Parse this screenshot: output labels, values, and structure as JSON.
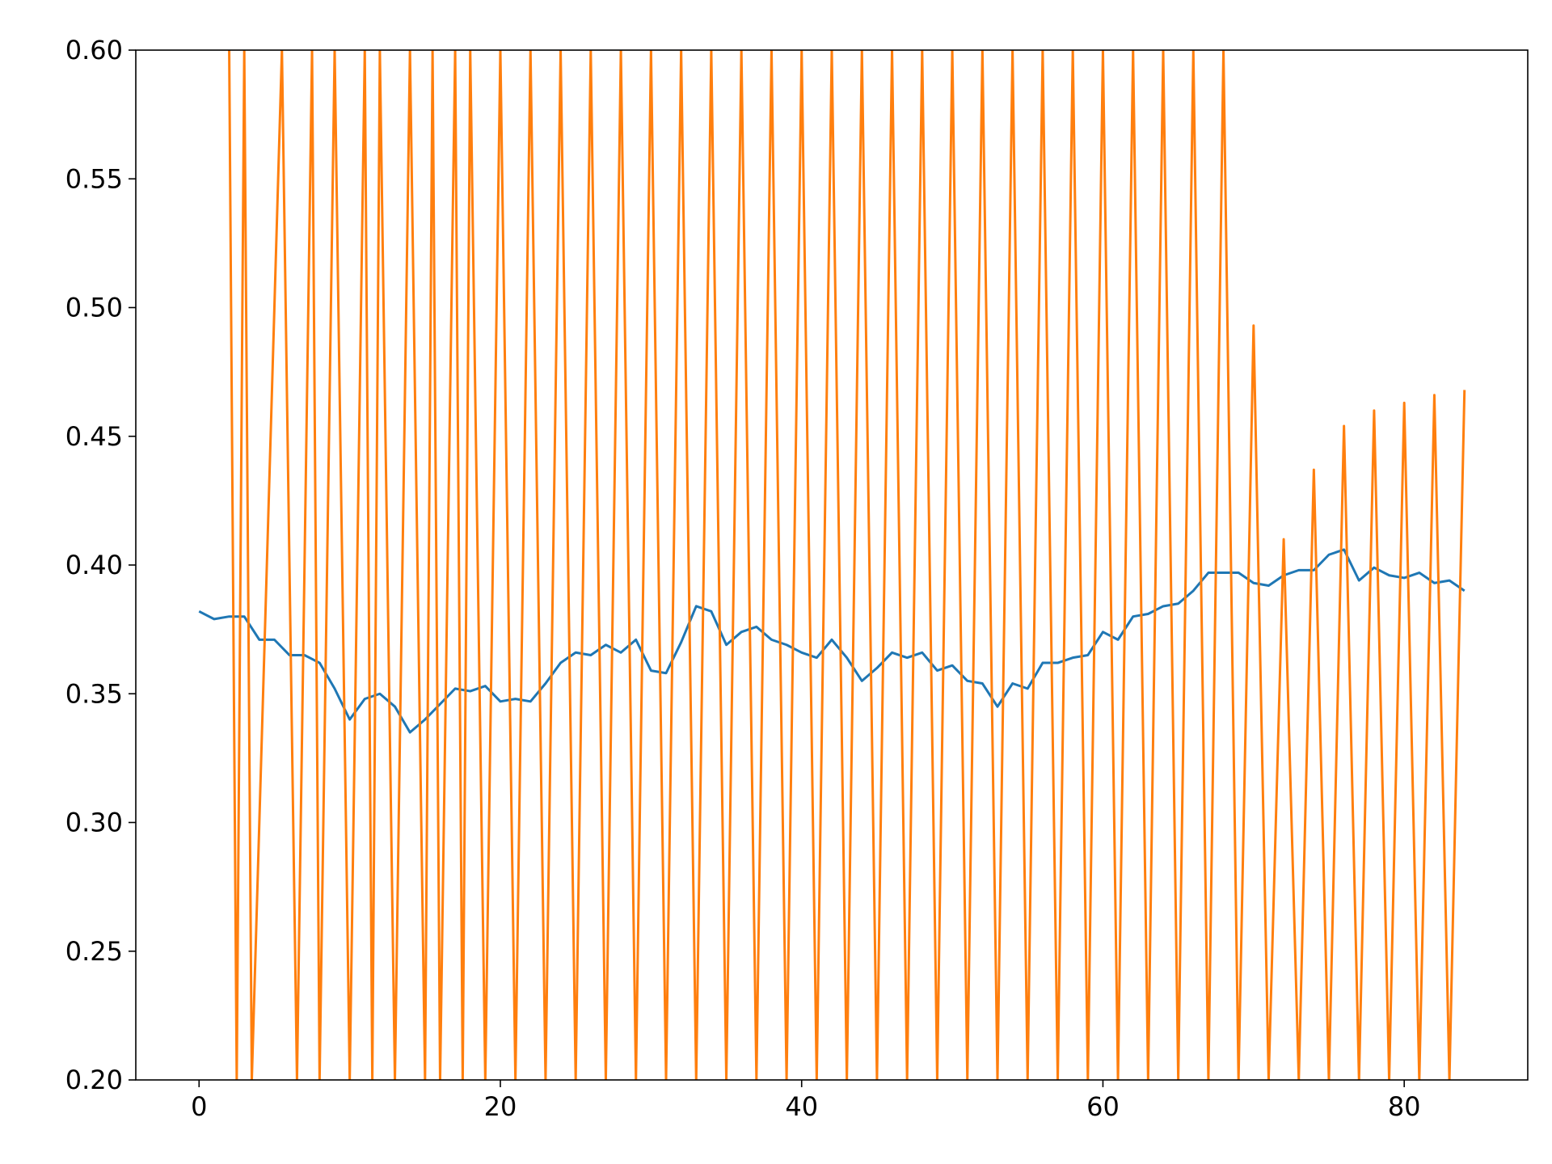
{
  "chart_data": {
    "type": "line",
    "title": "",
    "xlabel": "",
    "ylabel": "",
    "xlim": [
      -4.2,
      88.2
    ],
    "ylim": [
      0.2,
      0.6
    ],
    "grid": false,
    "legend": "none",
    "x_ticks": [
      0,
      20,
      40,
      60,
      80
    ],
    "x_tick_labels": [
      "0",
      "20",
      "40",
      "60",
      "80"
    ],
    "y_ticks": [
      0.2,
      0.25,
      0.3,
      0.35,
      0.4,
      0.45,
      0.5,
      0.55,
      0.6
    ],
    "y_tick_labels": [
      "0.20",
      "0.25",
      "0.30",
      "0.35",
      "0.40",
      "0.45",
      "0.50",
      "0.55",
      "0.60"
    ],
    "series": [
      {
        "color": "#1f77b4",
        "x": [
          0,
          1,
          2,
          3,
          4,
          5,
          6,
          7,
          8,
          9,
          10,
          11,
          12,
          13,
          14,
          15,
          16,
          17,
          18,
          19,
          20,
          21,
          22,
          23,
          24,
          25,
          26,
          27,
          28,
          29,
          30,
          31,
          32,
          33,
          34,
          35,
          36,
          37,
          38,
          39,
          40,
          41,
          42,
          43,
          44,
          45,
          46,
          47,
          48,
          49,
          50,
          51,
          52,
          53,
          54,
          55,
          56,
          57,
          58,
          59,
          60,
          61,
          62,
          63,
          64,
          65,
          66,
          67,
          68,
          69,
          70,
          71,
          72,
          73,
          74,
          75,
          76,
          77,
          78,
          79,
          80,
          81,
          82,
          83,
          84
        ],
        "y": [
          0.382,
          0.379,
          0.38,
          0.38,
          0.371,
          0.371,
          0.365,
          0.365,
          0.362,
          0.352,
          0.34,
          0.348,
          0.35,
          0.345,
          0.335,
          0.34,
          0.346,
          0.352,
          0.351,
          0.353,
          0.347,
          0.348,
          0.347,
          0.354,
          0.362,
          0.366,
          0.365,
          0.369,
          0.366,
          0.371,
          0.359,
          0.358,
          0.37,
          0.384,
          0.382,
          0.369,
          0.374,
          0.376,
          0.371,
          0.369,
          0.366,
          0.364,
          0.371,
          0.364,
          0.355,
          0.36,
          0.366,
          0.364,
          0.366,
          0.359,
          0.361,
          0.355,
          0.354,
          0.345,
          0.354,
          0.352,
          0.362,
          0.362,
          0.364,
          0.365,
          0.374,
          0.371,
          0.38,
          0.381,
          0.384,
          0.385,
          0.39,
          0.397,
          0.397,
          0.397,
          0.393,
          0.392,
          0.396,
          0.398,
          0.398,
          0.404,
          0.406,
          0.394,
          0.399,
          0.396,
          0.395,
          0.397,
          0.393,
          0.394,
          0.39
        ]
      },
      {
        "color": "#ff7f0e",
        "x": [
          2,
          2.5,
          3,
          3.5,
          5.5,
          6.5,
          7.5,
          8,
          9,
          10,
          11,
          11.5,
          12,
          13,
          14,
          15,
          15.5,
          16,
          17,
          17.5,
          18,
          19,
          20,
          21,
          22,
          23,
          24,
          25,
          26,
          27,
          28,
          29,
          30,
          31,
          32,
          33,
          34,
          35,
          36,
          37,
          38,
          39,
          40,
          41,
          42,
          43,
          44,
          45,
          46,
          47,
          48,
          49,
          50,
          51,
          52,
          53,
          54,
          55,
          56,
          57,
          58,
          59,
          60,
          61,
          62,
          63,
          64,
          65,
          66,
          67,
          68,
          69,
          70,
          71,
          72,
          73,
          74,
          75,
          76,
          77,
          78,
          79,
          80,
          81,
          82,
          83,
          84
        ],
        "y": [
          0.6,
          0.2,
          0.6,
          0.2,
          0.6,
          0.2,
          0.6,
          0.2,
          0.6,
          0.2,
          0.6,
          0.2,
          0.6,
          0.2,
          0.6,
          0.2,
          0.6,
          0.2,
          0.6,
          0.2,
          0.6,
          0.2,
          0.6,
          0.2,
          0.6,
          0.2,
          0.6,
          0.2,
          0.6,
          0.2,
          0.6,
          0.2,
          0.6,
          0.2,
          0.6,
          0.2,
          0.6,
          0.2,
          0.6,
          0.2,
          0.6,
          0.2,
          0.6,
          0.2,
          0.6,
          0.2,
          0.6,
          0.2,
          0.6,
          0.2,
          0.6,
          0.2,
          0.6,
          0.2,
          0.6,
          0.2,
          0.6,
          0.2,
          0.6,
          0.2,
          0.6,
          0.2,
          0.6,
          0.2,
          0.6,
          0.2,
          0.6,
          0.2,
          0.6,
          0.2,
          0.6,
          0.2,
          0.493,
          0.2,
          0.41,
          0.2,
          0.437,
          0.2,
          0.454,
          0.2,
          0.46,
          0.2,
          0.463,
          0.2,
          0.466,
          0.2,
          0.468
        ]
      }
    ]
  }
}
